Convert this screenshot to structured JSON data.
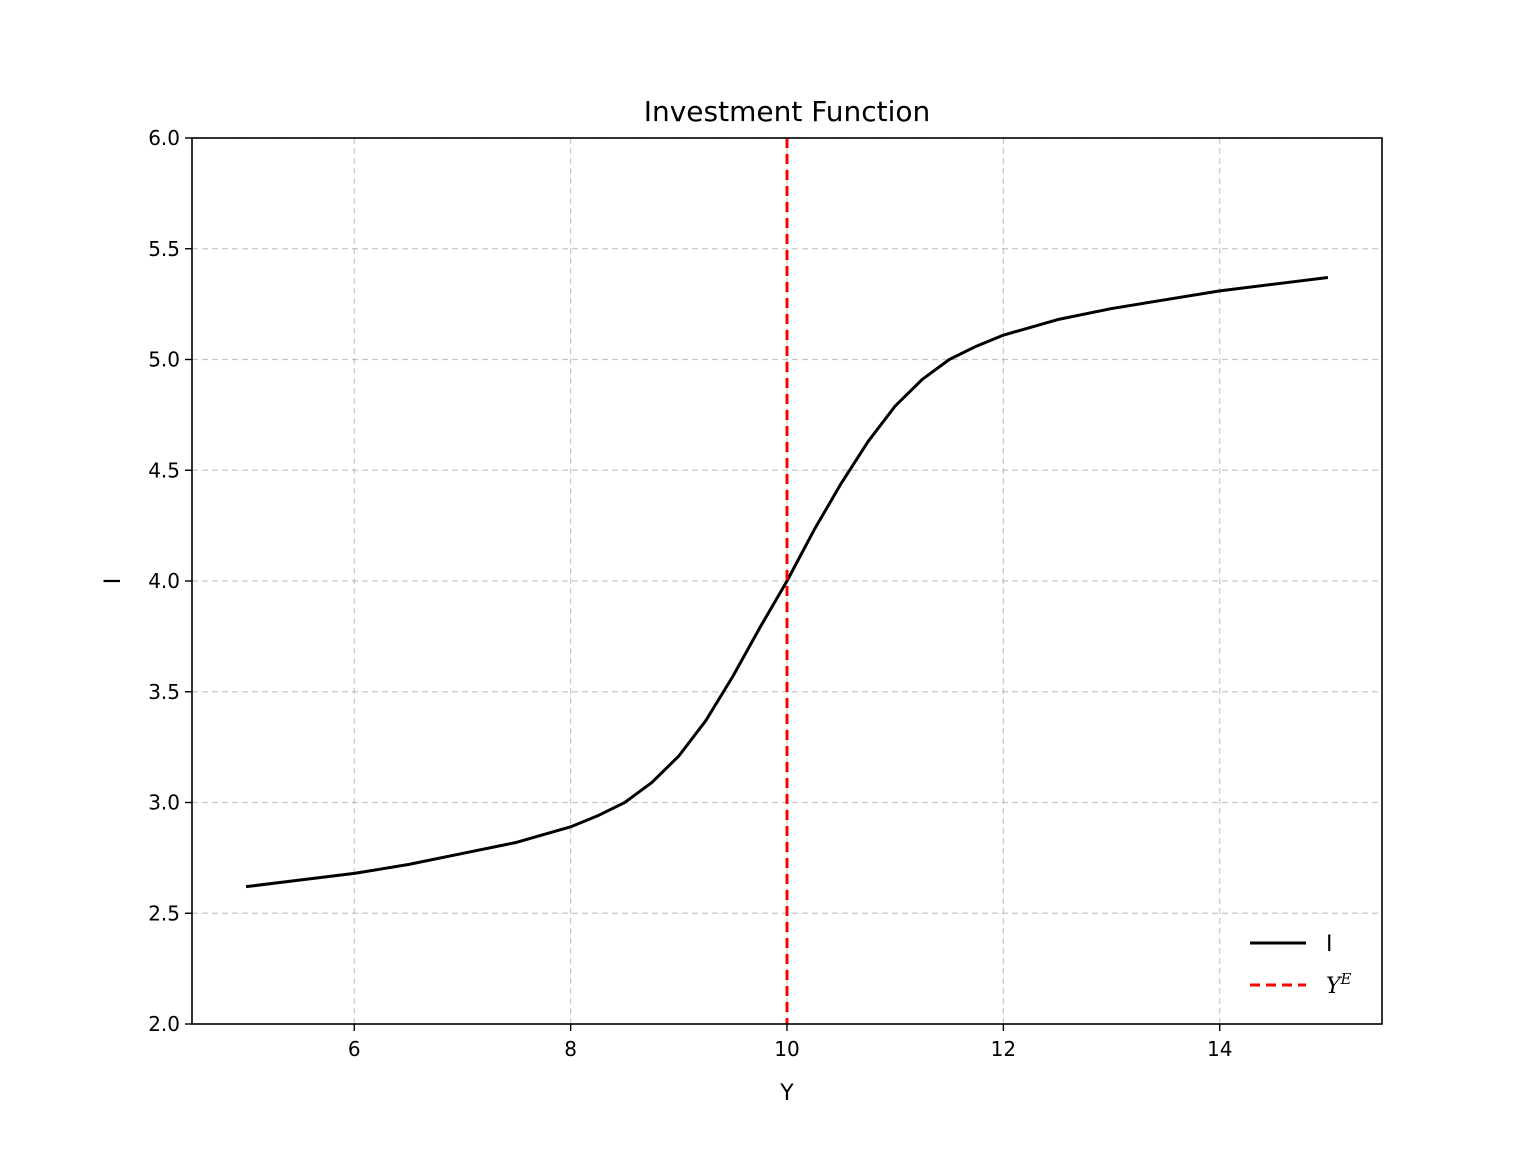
{
  "chart_data": {
    "type": "line",
    "title": "Investment Function",
    "xlabel": "Y",
    "ylabel": "I",
    "xlim": [
      4.5,
      15.5
    ],
    "ylim": [
      2.0,
      6.0
    ],
    "xticks": [
      6,
      8,
      10,
      12,
      14
    ],
    "yticks": [
      2.0,
      2.5,
      3.0,
      3.5,
      4.0,
      4.5,
      5.0,
      5.5,
      6.0
    ],
    "grid": true,
    "legend_position": "lower-right",
    "series": [
      {
        "name": "I",
        "color": "#000000",
        "style": "solid",
        "x": [
          5.0,
          5.5,
          6.0,
          6.5,
          7.0,
          7.5,
          8.0,
          8.25,
          8.5,
          8.75,
          9.0,
          9.25,
          9.5,
          9.75,
          10.0,
          10.25,
          10.5,
          10.75,
          11.0,
          11.25,
          11.5,
          11.75,
          12.0,
          12.5,
          13.0,
          13.5,
          14.0,
          14.5,
          15.0
        ],
        "y": [
          2.62,
          2.65,
          2.68,
          2.72,
          2.77,
          2.82,
          2.89,
          2.94,
          3.0,
          3.09,
          3.21,
          3.37,
          3.57,
          3.79,
          4.0,
          4.23,
          4.44,
          4.63,
          4.79,
          4.91,
          5.0,
          5.06,
          5.11,
          5.18,
          5.23,
          5.27,
          5.31,
          5.34,
          5.37
        ]
      },
      {
        "name_base": "Y",
        "name_sup": "E",
        "color": "#ff0000",
        "style": "dashed",
        "vline_x": 10.0
      }
    ]
  }
}
